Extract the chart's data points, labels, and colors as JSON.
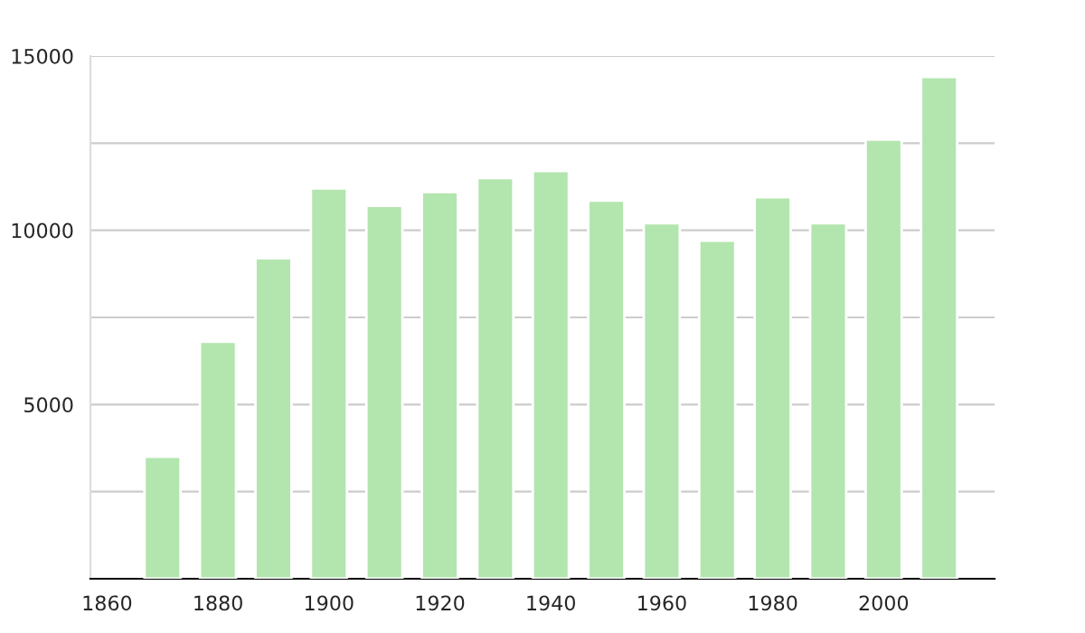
{
  "chart_data": {
    "type": "bar",
    "x": [
      1870,
      1880,
      1890,
      1900,
      1910,
      1920,
      1930,
      1940,
      1950,
      1960,
      1970,
      1980,
      1990,
      2000,
      2010
    ],
    "values": [
      3500,
      6800,
      9200,
      11200,
      10700,
      11100,
      11500,
      11700,
      10850,
      10200,
      9700,
      10950,
      10200,
      12600,
      14400
    ],
    "color": "#b3e5ae",
    "xlim": [
      1857,
      2020
    ],
    "xticks": [
      1860,
      1880,
      1900,
      1920,
      1940,
      1960,
      1980,
      2000
    ],
    "ylim": [
      0,
      15000
    ],
    "yticks": [
      {
        "value": 2500,
        "label": null
      },
      5000,
      {
        "value": 7500,
        "label": null
      },
      10000,
      {
        "value": 12500,
        "label": null
      },
      15000
    ],
    "grid": "y"
  }
}
